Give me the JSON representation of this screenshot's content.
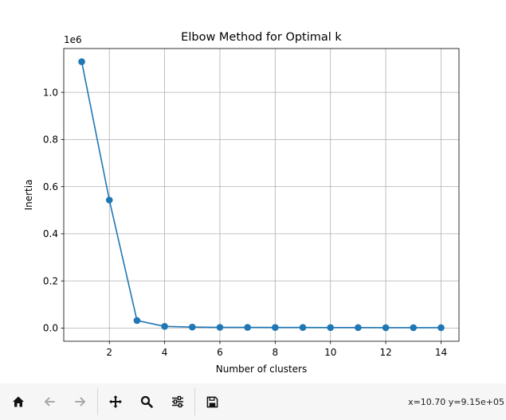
{
  "toolbar": {
    "buttons": [
      {
        "icon": "home-icon",
        "enabled": true
      },
      {
        "icon": "back-arrow-icon",
        "enabled": false
      },
      {
        "icon": "forward-arrow-icon",
        "enabled": false
      },
      {
        "icon": "pan-icon",
        "enabled": true
      },
      {
        "icon": "zoom-icon",
        "enabled": true
      },
      {
        "icon": "configure-subplots-icon",
        "enabled": true
      },
      {
        "icon": "save-icon",
        "enabled": true
      }
    ],
    "coordinates": "x=10.70 y=9.15e+05"
  },
  "colors": {
    "series": "#1f77b4",
    "grid": "#b0b0b0",
    "toolbar_bg": "#f6f6f6"
  },
  "chart_data": {
    "type": "line",
    "title": "Elbow Method for Optimal k",
    "xlabel": "Number of clusters",
    "ylabel": "Inertia",
    "y_offset_label": "1e6",
    "x": [
      1,
      2,
      3,
      4,
      5,
      6,
      7,
      8,
      9,
      10,
      11,
      12,
      13,
      14
    ],
    "values": [
      1130000,
      543000,
      32000,
      7000,
      4000,
      3000,
      2800,
      2500,
      2300,
      2100,
      1900,
      1700,
      1600,
      1500
    ],
    "marker": "circle",
    "xlim": [
      0.35,
      14.65
    ],
    "ylim": [
      -56000,
      1186000
    ],
    "xticks": [
      2,
      4,
      6,
      8,
      10,
      12,
      14
    ],
    "xtick_labels": [
      "2",
      "4",
      "6",
      "8",
      "10",
      "12",
      "14"
    ],
    "yticks": [
      0,
      200000,
      400000,
      600000,
      800000,
      1000000
    ],
    "ytick_labels": [
      "0.0",
      "0.2",
      "0.4",
      "0.6",
      "0.8",
      "1.0"
    ],
    "grid": true,
    "legend": "none"
  }
}
